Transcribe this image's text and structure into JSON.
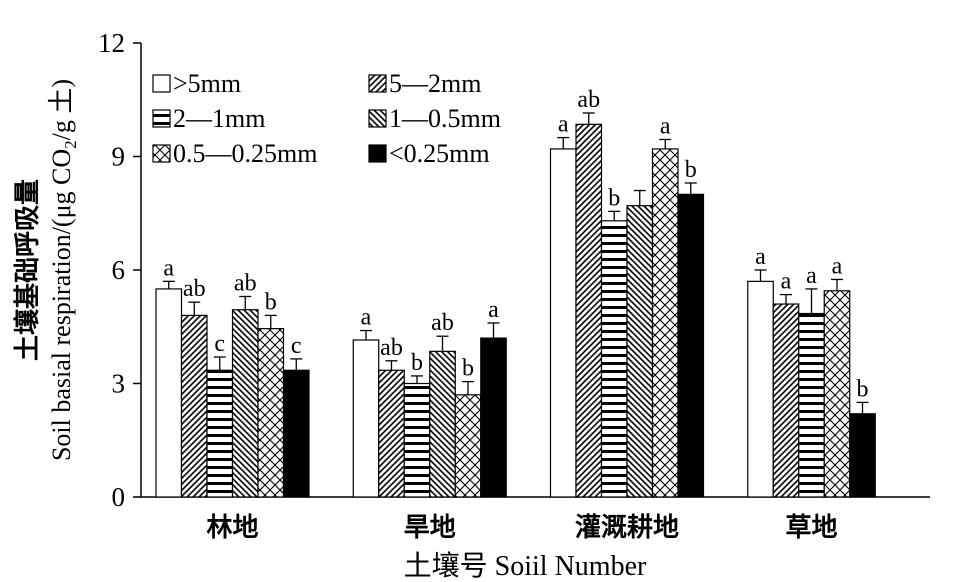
{
  "chart_data": {
    "type": "bar",
    "xlabel": "土壤号 Soiil Number",
    "ylabel_cn": "土壤基础呼吸量",
    "ylabel_en": "Soil basial respiration/(μg CO",
    "ylabel_sub": "2",
    "ylabel_end": "/g 土)",
    "ylim": [
      0,
      12
    ],
    "yticks": [
      "0",
      "3",
      "6",
      "9",
      "12"
    ],
    "categories": [
      "林地",
      "旱地",
      "灌溉耕地",
      "草地"
    ],
    "legend_placement": "top-left",
    "series": [
      {
        "name": ">5mm",
        "pattern": "white",
        "values": [
          5.5,
          4.15,
          9.2,
          5.7
        ],
        "errors": [
          0.2,
          0.25,
          0.3,
          0.3
        ],
        "labels": [
          "a",
          "a",
          "a",
          "a"
        ]
      },
      {
        "name": "5—2mm",
        "pattern": "diag-left",
        "values": [
          4.8,
          3.35,
          9.85,
          5.1
        ],
        "errors": [
          0.35,
          0.25,
          0.3,
          0.25
        ],
        "labels": [
          "ab",
          "ab",
          "ab",
          "a"
        ]
      },
      {
        "name": "2—1mm",
        "pattern": "horizontal",
        "values": [
          3.35,
          3.0,
          7.3,
          4.85
        ],
        "errors": [
          0.35,
          0.2,
          0.25,
          0.65
        ],
        "labels": [
          "c",
          "b",
          "b",
          "a"
        ]
      },
      {
        "name": "1—0.5mm",
        "pattern": "diag-right",
        "values": [
          4.95,
          3.85,
          7.7,
          null
        ],
        "errors": [
          0.35,
          0.4,
          0.4,
          null
        ],
        "labels": [
          "ab",
          "ab",
          "",
          ""
        ]
      },
      {
        "name": "0.5—0.25mm",
        "pattern": "cross",
        "values": [
          4.45,
          2.7,
          9.2,
          5.45
        ],
        "errors": [
          0.35,
          0.35,
          0.25,
          0.3
        ],
        "labels": [
          "b",
          "b",
          "a",
          "a"
        ]
      },
      {
        "name": "<0.25mm",
        "pattern": "black",
        "values": [
          3.35,
          4.2,
          8.0,
          2.2
        ],
        "errors": [
          0.3,
          0.4,
          0.3,
          0.3
        ],
        "labels": [
          "c",
          "a",
          "b",
          "b"
        ]
      }
    ]
  }
}
